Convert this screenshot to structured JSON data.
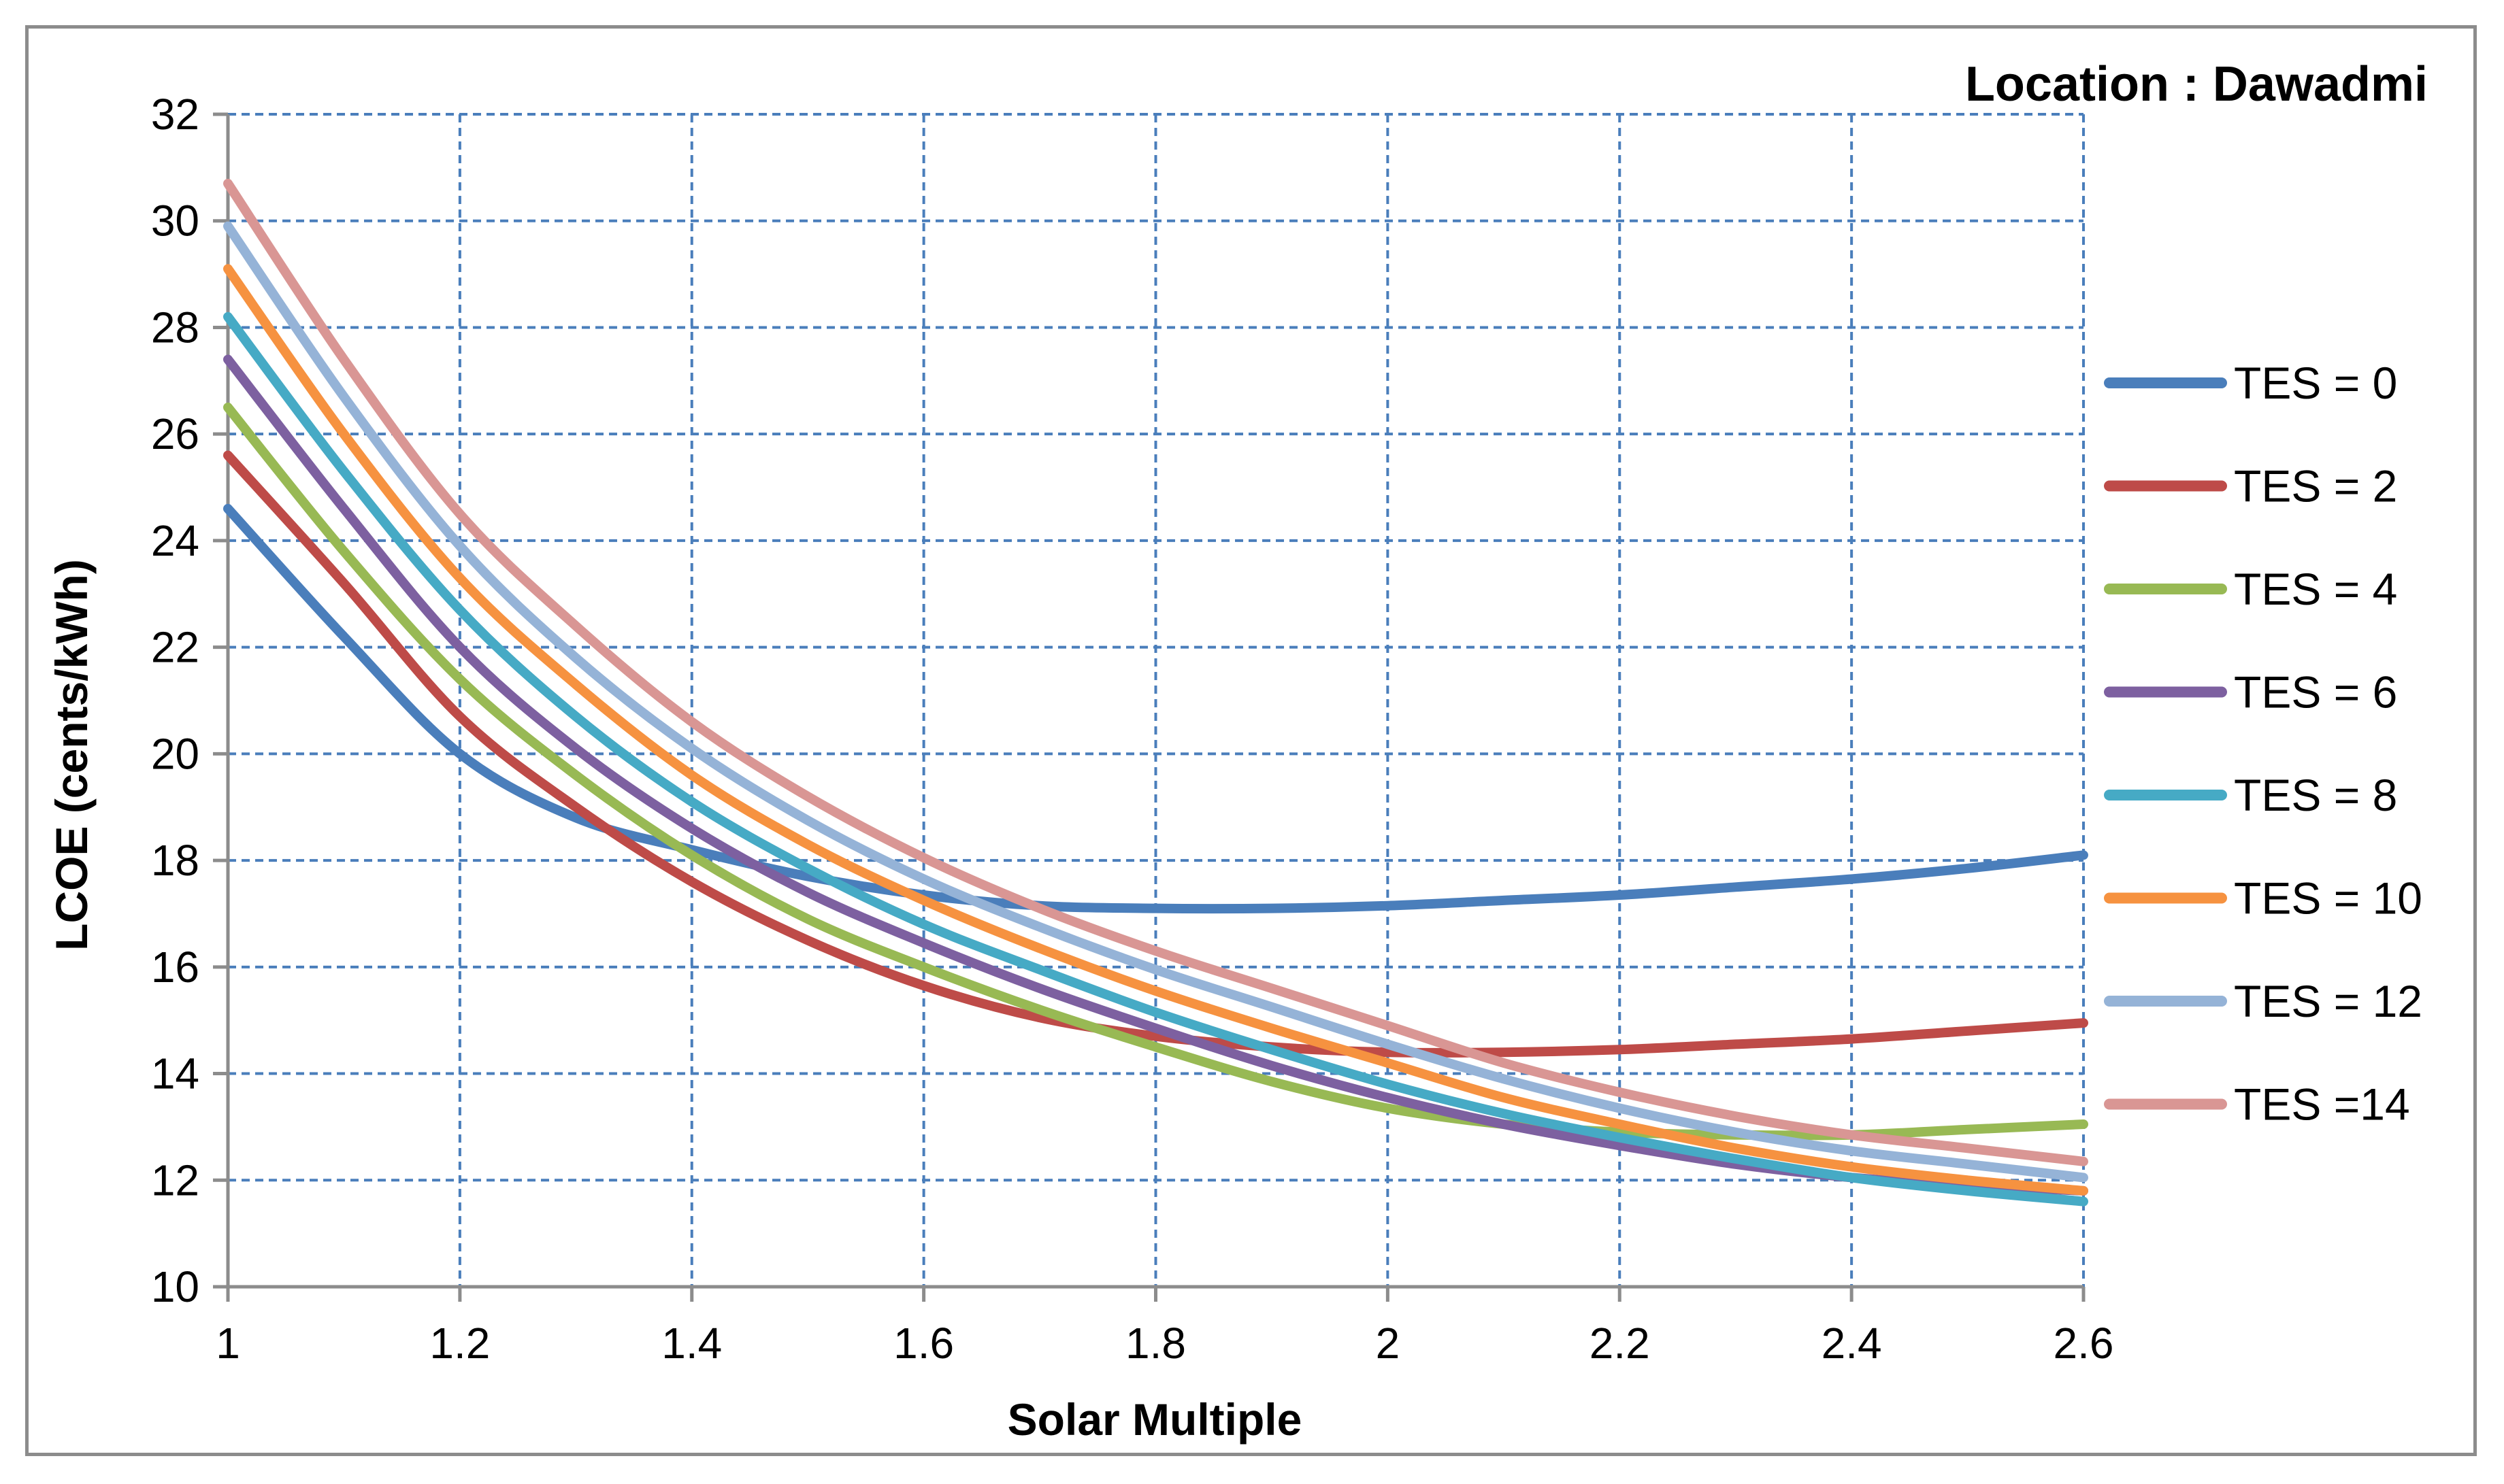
{
  "chart_data": {
    "type": "line",
    "title": "Location : Dawadmi",
    "xlabel": "Solar Multiple",
    "ylabel": "LCOE (cents/kWh)",
    "xlim": [
      1,
      2.6
    ],
    "ylim": [
      10,
      32
    ],
    "xticks": [
      1,
      1.2,
      1.4,
      1.6,
      1.8,
      2,
      2.2,
      2.4,
      2.6
    ],
    "xtick_labels": [
      "1",
      "1.2",
      "1.4",
      "1.6",
      "1.8",
      "2",
      "2.2",
      "2.4",
      "2.6"
    ],
    "yticks": [
      10,
      12,
      14,
      16,
      18,
      20,
      22,
      24,
      26,
      28,
      30,
      32
    ],
    "ytick_labels": [
      "10",
      "12",
      "14",
      "16",
      "18",
      "20",
      "22",
      "24",
      "26",
      "28",
      "30",
      "32"
    ],
    "grid": true,
    "legend_position": "right",
    "x": [
      1,
      1.1,
      1.2,
      1.3,
      1.4,
      1.5,
      1.6,
      1.7,
      1.8,
      1.9,
      2.0,
      2.1,
      2.2,
      2.3,
      2.4,
      2.5,
      2.6
    ],
    "series": [
      {
        "name": "TES = 0",
        "color": "#4a7ebb",
        "values": [
          24.6,
          22.2,
          20.0,
          18.8,
          18.2,
          17.7,
          17.35,
          17.15,
          17.1,
          17.1,
          17.15,
          17.25,
          17.35,
          17.5,
          17.65,
          17.85,
          18.1
        ]
      },
      {
        "name": "TES = 2",
        "color": "#be4b48",
        "values": [
          25.6,
          23.2,
          20.7,
          19.0,
          17.6,
          16.5,
          15.65,
          15.05,
          14.7,
          14.5,
          14.4,
          14.4,
          14.45,
          14.55,
          14.65,
          14.8,
          14.95
        ]
      },
      {
        "name": "TES = 4",
        "color": "#98b954",
        "values": [
          26.5,
          23.8,
          21.4,
          19.6,
          18.1,
          16.9,
          16.0,
          15.2,
          14.5,
          13.85,
          13.35,
          13.05,
          12.9,
          12.85,
          12.85,
          12.95,
          13.05
        ]
      },
      {
        "name": "TES = 6",
        "color": "#7d60a0",
        "values": [
          27.4,
          24.6,
          22.0,
          20.1,
          18.6,
          17.4,
          16.45,
          15.6,
          14.85,
          14.15,
          13.55,
          13.05,
          12.65,
          12.3,
          12.05,
          11.9,
          11.8
        ]
      },
      {
        "name": "TES = 8",
        "color": "#46aac5",
        "values": [
          28.2,
          25.3,
          22.7,
          20.7,
          19.1,
          17.85,
          16.8,
          15.95,
          15.15,
          14.45,
          13.8,
          13.25,
          12.8,
          12.4,
          12.05,
          11.8,
          11.6
        ]
      },
      {
        "name": "TES = 10",
        "color": "#f69240",
        "values": [
          29.1,
          26.0,
          23.3,
          21.3,
          19.6,
          18.3,
          17.25,
          16.35,
          15.55,
          14.85,
          14.2,
          13.55,
          13.05,
          12.6,
          12.25,
          12.0,
          11.8
        ]
      },
      {
        "name": "TES = 12",
        "color": "#95b3d7",
        "values": [
          29.9,
          26.7,
          23.9,
          21.8,
          20.1,
          18.75,
          17.65,
          16.75,
          15.95,
          15.25,
          14.55,
          13.9,
          13.35,
          12.9,
          12.55,
          12.3,
          12.05
        ]
      },
      {
        "name": "TES =14",
        "color": "#d99694",
        "values": [
          30.7,
          27.4,
          24.5,
          22.4,
          20.6,
          19.2,
          18.05,
          17.1,
          16.3,
          15.6,
          14.9,
          14.2,
          13.65,
          13.2,
          12.85,
          12.6,
          12.35
        ]
      }
    ]
  }
}
